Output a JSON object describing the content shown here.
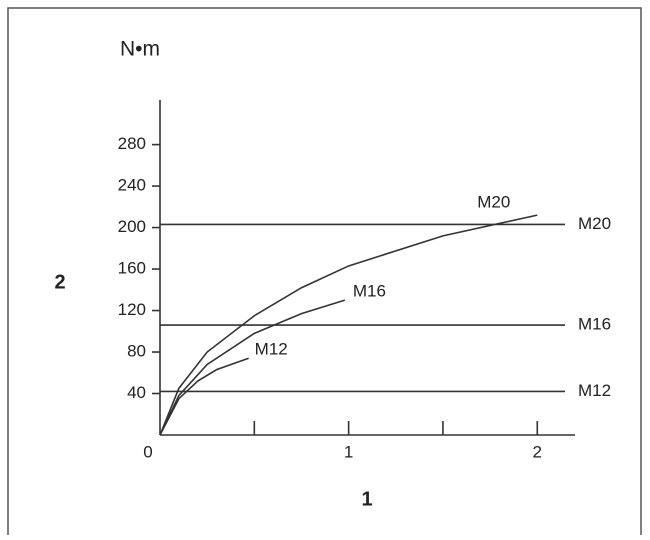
{
  "chart_data": {
    "type": "line",
    "y_label": "N•m",
    "y_axis_name": "2",
    "x_axis_name": "1",
    "xlim": [
      0,
      2.2
    ],
    "ylim": [
      0,
      323
    ],
    "xticks": [
      0,
      1,
      2
    ],
    "xminor_ticks": [
      0.5,
      1.5
    ],
    "yticks": [
      40,
      80,
      120,
      160,
      200,
      240,
      280
    ],
    "color": "#333333",
    "series": [
      {
        "name": "M20",
        "x": [
          0,
          0.1,
          0.25,
          0.5,
          0.75,
          1,
          1.5,
          2
        ],
        "values": [
          0,
          45,
          80,
          115,
          142,
          163,
          192,
          212
        ]
      },
      {
        "name": "M16",
        "x": [
          0,
          0.1,
          0.25,
          0.5,
          0.75,
          0.98
        ],
        "values": [
          0,
          38,
          68,
          98,
          117,
          130
        ]
      },
      {
        "name": "M12",
        "x": [
          0,
          0.1,
          0.2,
          0.3,
          0.47
        ],
        "values": [
          0,
          35,
          52,
          63,
          74
        ]
      }
    ],
    "hlines": [
      {
        "name": "M20",
        "value": 203
      },
      {
        "name": "M16",
        "value": 106
      },
      {
        "name": "M12",
        "value": 42
      }
    ]
  }
}
